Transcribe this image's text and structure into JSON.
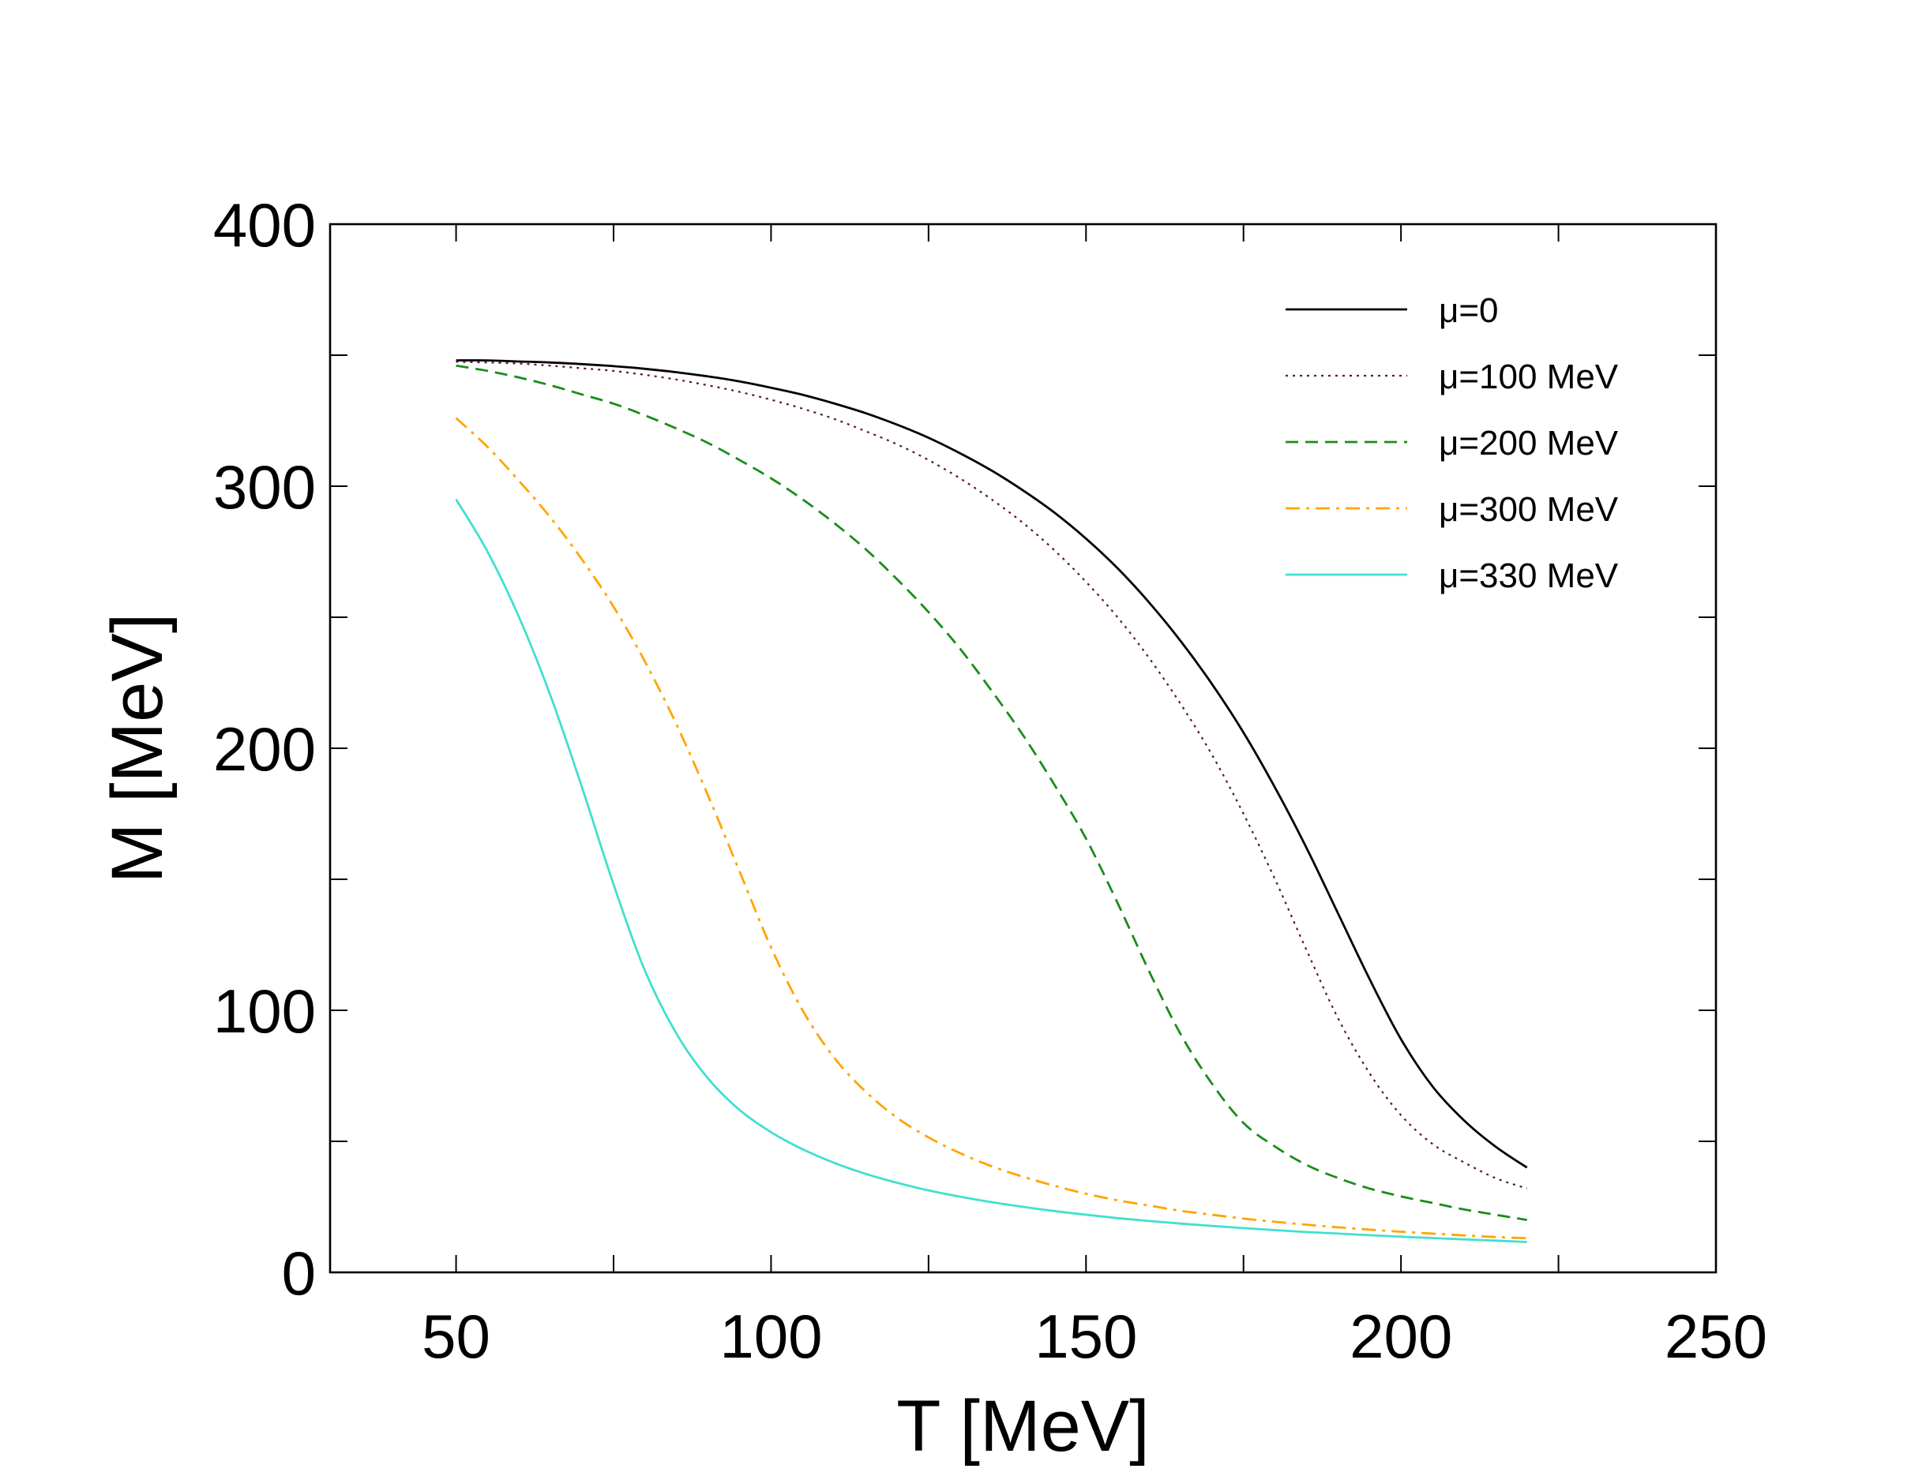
{
  "chart_data": {
    "type": "line",
    "title": "",
    "xlabel": "T [MeV]",
    "ylabel": "M [MeV]",
    "xlim": [
      30,
      250
    ],
    "ylim": [
      0,
      400
    ],
    "xticks": [
      50,
      100,
      150,
      200,
      250
    ],
    "yticks": [
      0,
      100,
      200,
      300,
      400
    ],
    "xticks_minor": [
      75,
      125,
      175,
      225
    ],
    "yticks_minor": [
      50,
      150,
      250,
      350
    ],
    "grid": false,
    "legend_position": "top-right",
    "x": [
      50,
      55,
      60,
      65,
      70,
      75,
      80,
      85,
      90,
      95,
      100,
      105,
      110,
      115,
      120,
      125,
      130,
      135,
      140,
      145,
      150,
      155,
      160,
      165,
      170,
      175,
      180,
      185,
      190,
      195,
      200,
      205,
      210,
      215,
      220
    ],
    "series": [
      {
        "name": "μ=0",
        "color": "#000000",
        "style": "solid",
        "values": [
          348,
          348,
          347.6,
          347.2,
          346.6,
          345.8,
          344.8,
          343.5,
          341.9,
          340,
          337.6,
          334.9,
          331.6,
          327.9,
          323.5,
          318.5,
          312.6,
          306,
          298.4,
          289.9,
          280,
          268.7,
          255.7,
          241,
          224.5,
          206,
          185,
          162,
          137,
          112,
          89,
          71,
          58,
          48,
          40
        ]
      },
      {
        "name": "μ=100 MeV",
        "color": "#5a1440",
        "style": "dotted",
        "values": [
          347.5,
          347.2,
          346.8,
          346,
          345,
          344,
          342.5,
          340.7,
          338.5,
          336,
          333,
          329.6,
          325.7,
          321,
          316,
          310,
          303,
          295,
          286,
          275.5,
          263.5,
          250,
          234.5,
          217,
          197.5,
          175,
          150,
          123,
          97,
          76,
          60,
          49,
          42,
          36,
          32
        ]
      },
      {
        "name": "μ=200 MeV",
        "color": "#1a8c1a",
        "style": "dashed",
        "values": [
          346,
          344,
          341.5,
          338.5,
          335,
          331.5,
          327,
          322,
          316.5,
          310,
          303,
          295,
          286,
          276,
          264.5,
          252,
          238,
          222,
          205,
          186,
          165.5,
          141,
          115,
          91,
          72,
          57,
          48,
          41,
          36,
          32,
          29,
          26.5,
          24,
          22,
          20
        ]
      },
      {
        "name": "μ=300 MeV",
        "color": "#ffa500",
        "style": "dashdot",
        "values": [
          326,
          315,
          302,
          288,
          272,
          254,
          233,
          209,
          182,
          153,
          124,
          100,
          82,
          69,
          59,
          51.5,
          45.5,
          40.5,
          36.5,
          33,
          30,
          27.5,
          25.5,
          23.5,
          22,
          20.5,
          19.3,
          18.2,
          17.2,
          16.3,
          15.5,
          14.8,
          14.1,
          13.5,
          13
        ]
      },
      {
        "name": "μ=330 MeV",
        "color": "#40e0d0",
        "style": "solid",
        "values": [
          295,
          275,
          250,
          220,
          185,
          148,
          115,
          91,
          74,
          62,
          53.5,
          47,
          41.8,
          37.6,
          34.2,
          31.3,
          28.9,
          26.8,
          25,
          23.4,
          22,
          20.7,
          19.6,
          18.6,
          17.7,
          16.9,
          16.1,
          15.4,
          14.8,
          14.2,
          13.6,
          13.1,
          12.6,
          12.1,
          11.6
        ]
      }
    ]
  }
}
